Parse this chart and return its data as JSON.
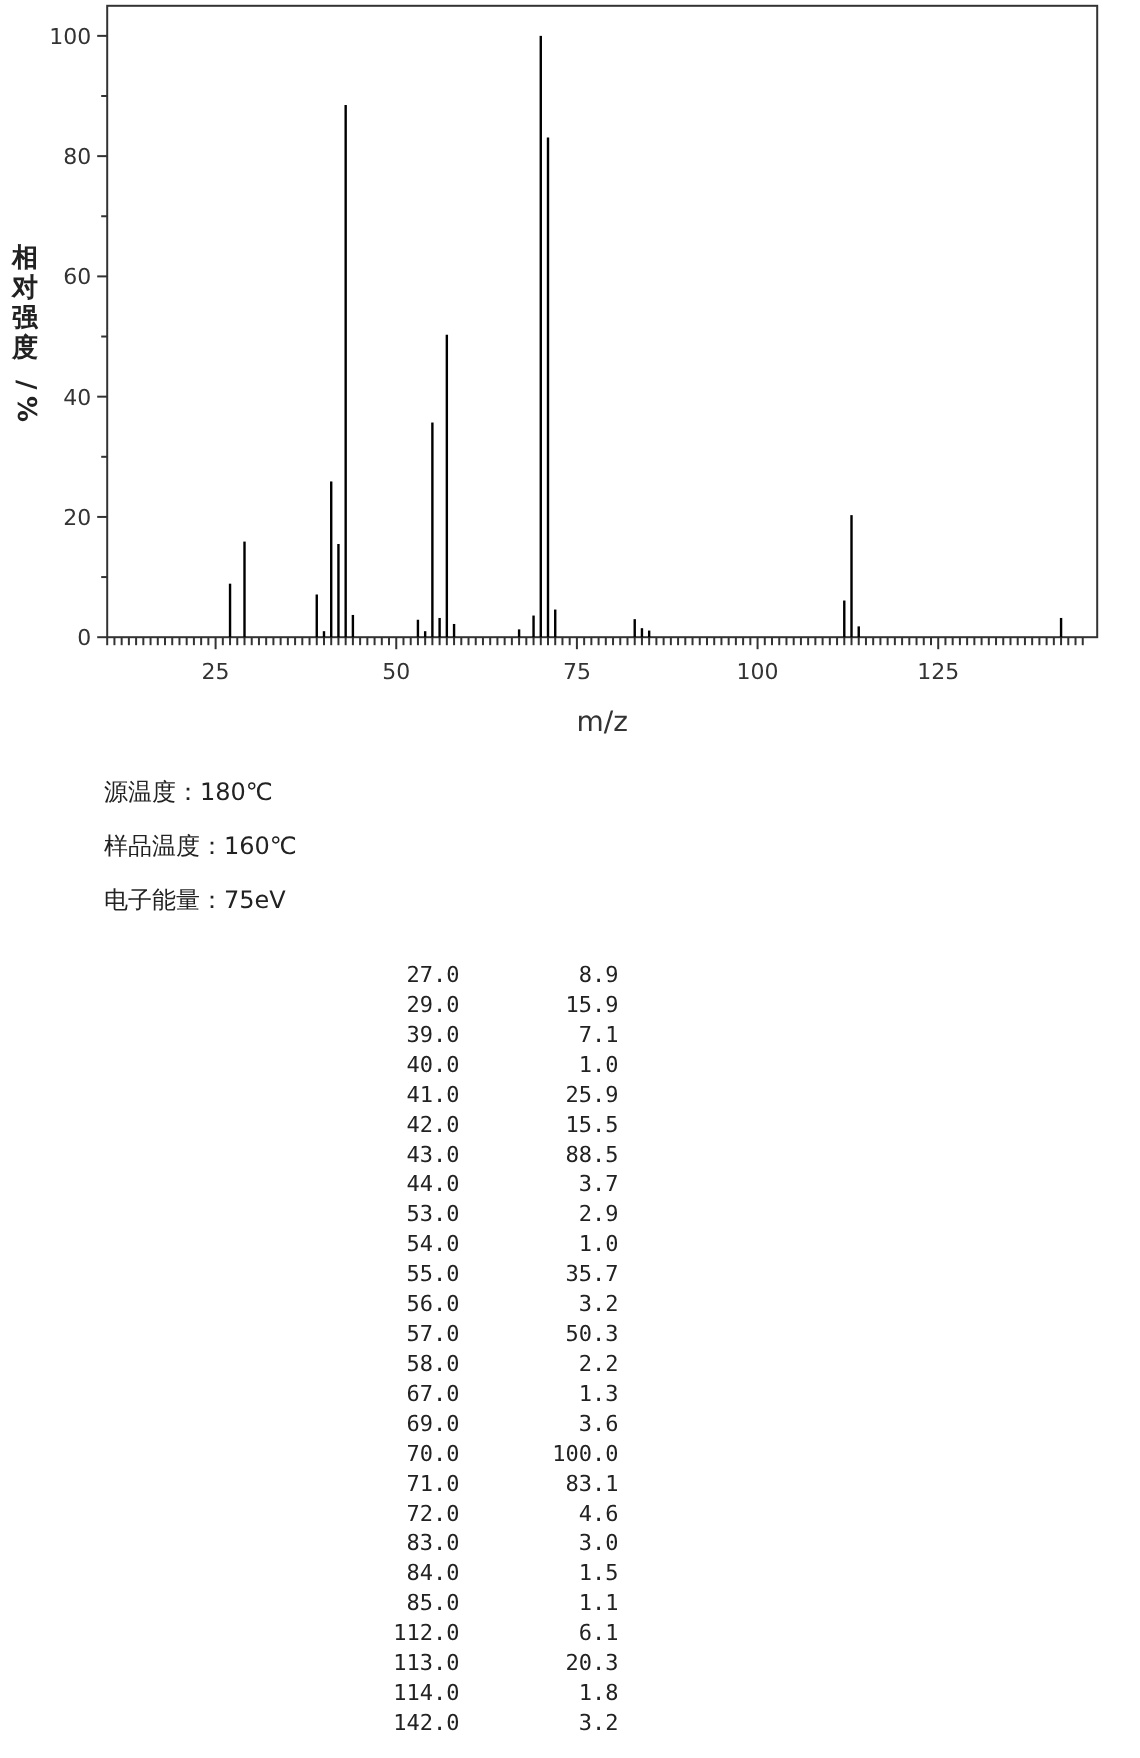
{
  "chart_data": {
    "type": "bar",
    "xlabel": "m/z",
    "ylabel": "相对强度/%",
    "x": [
      27,
      29,
      39,
      40,
      41,
      42,
      43,
      44,
      53,
      54,
      55,
      56,
      57,
      58,
      67,
      69,
      70,
      71,
      72,
      83,
      84,
      85,
      112,
      113,
      114,
      142
    ],
    "values": [
      8.9,
      15.9,
      7.1,
      1.0,
      25.9,
      15.5,
      88.5,
      3.7,
      2.9,
      1.0,
      35.7,
      3.2,
      50.3,
      2.2,
      1.3,
      3.6,
      100.0,
      83.1,
      4.6,
      3.0,
      1.5,
      1.1,
      6.1,
      20.3,
      1.8,
      3.2
    ],
    "color": "#000000",
    "xlim": [
      10,
      147
    ],
    "xticks": [
      {
        "value": 10,
        "label": null
      },
      {
        "value": 11,
        "label": null
      },
      {
        "value": 12,
        "label": null
      },
      {
        "value": 13,
        "label": null
      },
      {
        "value": 14,
        "label": null
      },
      {
        "value": 15,
        "label": null
      },
      {
        "value": 16,
        "label": null
      },
      {
        "value": 17,
        "label": null
      },
      {
        "value": 18,
        "label": null
      },
      {
        "value": 19,
        "label": null
      },
      {
        "value": 20,
        "label": null
      },
      {
        "value": 21,
        "label": null
      },
      {
        "value": 22,
        "label": null
      },
      {
        "value": 23,
        "label": null
      },
      {
        "value": 24,
        "label": null
      },
      25,
      {
        "value": 26,
        "label": null
      },
      {
        "value": 27,
        "label": null
      },
      {
        "value": 28,
        "label": null
      },
      {
        "value": 29,
        "label": null
      },
      {
        "value": 30,
        "label": null
      },
      {
        "value": 31,
        "label": null
      },
      {
        "value": 32,
        "label": null
      },
      {
        "value": 33,
        "label": null
      },
      {
        "value": 34,
        "label": null
      },
      {
        "value": 35,
        "label": null
      },
      {
        "value": 36,
        "label": null
      },
      {
        "value": 37,
        "label": null
      },
      {
        "value": 38,
        "label": null
      },
      {
        "value": 39,
        "label": null
      },
      {
        "value": 40,
        "label": null
      },
      {
        "value": 41,
        "label": null
      },
      {
        "value": 42,
        "label": null
      },
      {
        "value": 43,
        "label": null
      },
      {
        "value": 44,
        "label": null
      },
      {
        "value": 45,
        "label": null
      },
      {
        "value": 46,
        "label": null
      },
      {
        "value": 47,
        "label": null
      },
      {
        "value": 48,
        "label": null
      },
      {
        "value": 49,
        "label": null
      },
      50,
      {
        "value": 51,
        "label": null
      },
      {
        "value": 52,
        "label": null
      },
      {
        "value": 53,
        "label": null
      },
      {
        "value": 54,
        "label": null
      },
      {
        "value": 55,
        "label": null
      },
      {
        "value": 56,
        "label": null
      },
      {
        "value": 57,
        "label": null
      },
      {
        "value": 58,
        "label": null
      },
      {
        "value": 59,
        "label": null
      },
      {
        "value": 60,
        "label": null
      },
      {
        "value": 61,
        "label": null
      },
      {
        "value": 62,
        "label": null
      },
      {
        "value": 63,
        "label": null
      },
      {
        "value": 64,
        "label": null
      },
      {
        "value": 65,
        "label": null
      },
      {
        "value": 66,
        "label": null
      },
      {
        "value": 67,
        "label": null
      },
      {
        "value": 68,
        "label": null
      },
      {
        "value": 69,
        "label": null
      },
      {
        "value": 70,
        "label": null
      },
      {
        "value": 71,
        "label": null
      },
      {
        "value": 72,
        "label": null
      },
      {
        "value": 73,
        "label": null
      },
      {
        "value": 74,
        "label": null
      },
      75,
      {
        "value": 76,
        "label": null
      },
      {
        "value": 77,
        "label": null
      },
      {
        "value": 78,
        "label": null
      },
      {
        "value": 79,
        "label": null
      },
      {
        "value": 80,
        "label": null
      },
      {
        "value": 81,
        "label": null
      },
      {
        "value": 82,
        "label": null
      },
      {
        "value": 83,
        "label": null
      },
      {
        "value": 84,
        "label": null
      },
      {
        "value": 85,
        "label": null
      },
      {
        "value": 86,
        "label": null
      },
      {
        "value": 87,
        "label": null
      },
      {
        "value": 88,
        "label": null
      },
      {
        "value": 89,
        "label": null
      },
      {
        "value": 90,
        "label": null
      },
      {
        "value": 91,
        "label": null
      },
      {
        "value": 92,
        "label": null
      },
      {
        "value": 93,
        "label": null
      },
      {
        "value": 94,
        "label": null
      },
      {
        "value": 95,
        "label": null
      },
      {
        "value": 96,
        "label": null
      },
      {
        "value": 97,
        "label": null
      },
      {
        "value": 98,
        "label": null
      },
      {
        "value": 99,
        "label": null
      },
      100,
      {
        "value": 101,
        "label": null
      },
      {
        "value": 102,
        "label": null
      },
      {
        "value": 103,
        "label": null
      },
      {
        "value": 104,
        "label": null
      },
      {
        "value": 105,
        "label": null
      },
      {
        "value": 106,
        "label": null
      },
      {
        "value": 107,
        "label": null
      },
      {
        "value": 108,
        "label": null
      },
      {
        "value": 109,
        "label": null
      },
      {
        "value": 110,
        "label": null
      },
      {
        "value": 111,
        "label": null
      },
      {
        "value": 112,
        "label": null
      },
      {
        "value": 113,
        "label": null
      },
      {
        "value": 114,
        "label": null
      },
      {
        "value": 115,
        "label": null
      },
      {
        "value": 116,
        "label": null
      },
      {
        "value": 117,
        "label": null
      },
      {
        "value": 118,
        "label": null
      },
      {
        "value": 119,
        "label": null
      },
      {
        "value": 120,
        "label": null
      },
      {
        "value": 121,
        "label": null
      },
      {
        "value": 122,
        "label": null
      },
      {
        "value": 123,
        "label": null
      },
      {
        "value": 124,
        "label": null
      },
      125,
      {
        "value": 126,
        "label": null
      },
      {
        "value": 127,
        "label": null
      },
      {
        "value": 128,
        "label": null
      },
      {
        "value": 129,
        "label": null
      },
      {
        "value": 130,
        "label": null
      },
      {
        "value": 131,
        "label": null
      },
      {
        "value": 132,
        "label": null
      },
      {
        "value": 133,
        "label": null
      },
      {
        "value": 134,
        "label": null
      },
      {
        "value": 135,
        "label": null
      },
      {
        "value": 136,
        "label": null
      },
      {
        "value": 137,
        "label": null
      },
      {
        "value": 138,
        "label": null
      },
      {
        "value": 139,
        "label": null
      },
      {
        "value": 140,
        "label": null
      },
      {
        "value": 141,
        "label": null
      },
      {
        "value": 142,
        "label": null
      },
      {
        "value": 143,
        "label": null
      },
      {
        "value": 144,
        "label": null
      },
      {
        "value": 145,
        "label": null
      }
    ],
    "ylim": [
      0,
      105
    ],
    "yticks": [
      0,
      {
        "value": 10,
        "label": null
      },
      20,
      {
        "value": 30,
        "label": null
      },
      40,
      {
        "value": 50,
        "label": null
      },
      60,
      {
        "value": 70,
        "label": null
      },
      80,
      {
        "value": 90,
        "label": null
      },
      100
    ],
    "annotations": [
      "源温度：180℃",
      "样品温度：160℃",
      "电子能量：75eV",
      "  27.0         8.9",
      "  29.0        15.9",
      "  39.0         7.1",
      "  40.0         1.0",
      "  41.0        25.9",
      "  42.0        15.5",
      "  43.0        88.5",
      "  44.0         3.7",
      "  53.0         2.9",
      "  54.0         1.0",
      "  55.0        35.7",
      "  56.0         3.2",
      "  57.0        50.3",
      "  58.0         2.2",
      "  67.0         1.3",
      "  69.0         3.6",
      "  70.0       100.0",
      "  71.0        83.1",
      "  72.0         4.6",
      "  83.0         3.0",
      "  84.0         1.5",
      "  85.0         1.1",
      " 112.0         6.1",
      " 113.0        20.3",
      " 114.0         1.8",
      " 142.0         3.2"
    ]
  }
}
